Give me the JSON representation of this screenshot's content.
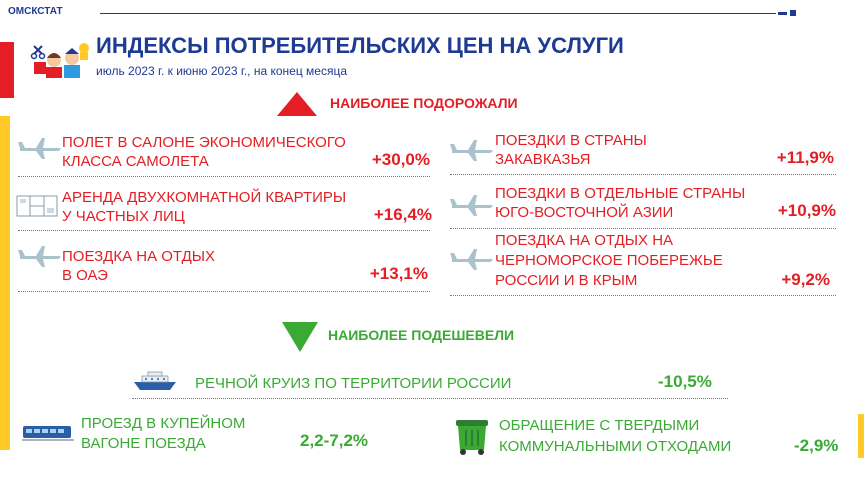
{
  "header": {
    "org": "ОМСКСТАТ",
    "title": "ИНДЕКСЫ ПОТРЕБИТЕЛЬСКИХ ЦЕН НА УСЛУГИ",
    "subtitle": "июль 2023 г. к июню 2023 г., на конец месяца"
  },
  "increased": {
    "heading": "НАИБОЛЕЕ ПОДОРОЖАЛИ",
    "items": [
      {
        "label1": "ПОЛЕТ В САЛОНЕ ЭКОНОМИЧЕСКОГО",
        "label2": "КЛАССА САМОЛЕТА",
        "value": "+30,0%",
        "icon": "airplane-icon"
      },
      {
        "label1": "АРЕНДА  ДВУХКОМНАТНОЙ КВАРТИРЫ",
        "label2": "У ЧАСТНЫХ ЛИЦ",
        "value": "+16,4%",
        "icon": "floor-plan-icon"
      },
      {
        "label1": "ПОЕЗДКА НА ОТДЫХ",
        "label2": "В ОАЭ",
        "value": "+13,1%",
        "icon": "airplane-icon"
      },
      {
        "label1": "ПОЕЗДКИ В СТРАНЫ",
        "label2": "ЗАКАВКАЗЬЯ",
        "value": "+11,9%",
        "icon": "airplane-icon"
      },
      {
        "label1": "ПОЕЗДКИ В ОТДЕЛЬНЫЕ СТРАНЫ",
        "label2": "ЮГО-ВОСТОЧНОЙ АЗИИ",
        "value": "+10,9%",
        "icon": "airplane-icon"
      },
      {
        "label1": "ПОЕЗДКА НА ОТДЫХ НА",
        "label2": "ЧЕРНОМОРСКОЕ ПОБЕРЕЖЬЕ",
        "label3": "РОССИИ И В КРЫМ",
        "value": "+9,2%",
        "icon": "airplane-icon"
      }
    ]
  },
  "decreased": {
    "heading": "НАИБОЛЕЕ ПОДЕШЕВЕЛИ",
    "items": [
      {
        "label1": "РЕЧНОЙ КРУИЗ ПО ТЕРРИТОРИИ РОССИИ",
        "value": "-10,5%",
        "icon": "ship-icon"
      },
      {
        "label1": "ПРОЕЗД В КУПЕЙНОМ",
        "label2": "ВАГОНЕ ПОЕЗДА",
        "value": "2,2-7,2%",
        "icon": "train-icon"
      },
      {
        "label1": "ОБРАЩЕНИЕ С ТВЕРДЫМИ",
        "label2": "КОММУНАЛЬНЫМИ ОТХОДАМИ",
        "value": "-2,9%",
        "icon": "trash-container-icon"
      }
    ]
  },
  "colors": {
    "accent_blue": "#1f3a93",
    "up_red": "#e31e24",
    "down_green": "#3aaa35",
    "side_yellow": "#ffc926"
  }
}
